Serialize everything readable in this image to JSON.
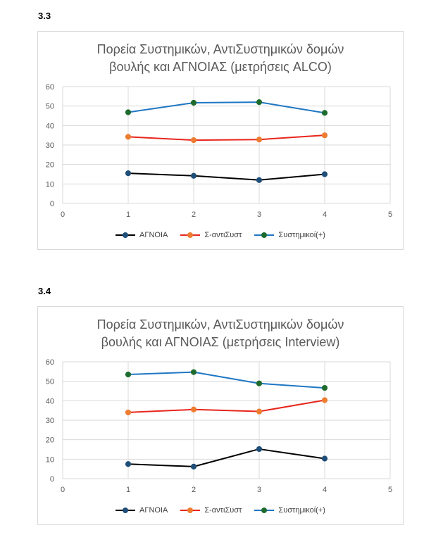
{
  "sections": [
    {
      "label": "3.3"
    },
    {
      "label": "3.4"
    }
  ],
  "chart_data": [
    {
      "type": "line",
      "title": "Πορεία Συστημικών, ΑντιΣυστημικών δομών\nβουλής και ΑΓΝΟΙΑΣ (μετρήσεις ALCO)",
      "xlim": [
        0,
        5
      ],
      "ylim": [
        0,
        60
      ],
      "xticks": [
        "0",
        "1",
        "2",
        "3",
        "4",
        "5"
      ],
      "yticks": [
        "0",
        "10",
        "20",
        "30",
        "40",
        "50",
        "60"
      ],
      "grid": true,
      "legend_position": "bottom",
      "x": [
        1,
        2,
        3,
        4
      ],
      "series": [
        {
          "name": "ΑΓΝΟΙΑ",
          "values": [
            15.5,
            14.2,
            12,
            15
          ],
          "line_color": "#000000",
          "marker_color": "#1f4e79"
        },
        {
          "name": "Σ-αντιΣυστ",
          "values": [
            34.2,
            32.5,
            32.8,
            35
          ],
          "line_color": "#e8261c",
          "marker_color": "#ed7d31"
        },
        {
          "name": "Συστημικοί(+)",
          "values": [
            46.8,
            51.7,
            52,
            46.5
          ],
          "line_color": "#1f77c4",
          "marker_color": "#1e6b2e"
        }
      ]
    },
    {
      "type": "line",
      "title": "Πορεία Συστημικών, ΑντιΣυστημικών δομών\nβουλής και ΑΓΝΟΙΑΣ (μετρήσεις Interview)",
      "xlim": [
        0,
        5
      ],
      "ylim": [
        0,
        60
      ],
      "xticks": [
        "0",
        "1",
        "2",
        "3",
        "4",
        "5"
      ],
      "yticks": [
        "0",
        "10",
        "20",
        "30",
        "40",
        "50",
        "60"
      ],
      "grid": true,
      "legend_position": "bottom",
      "x": [
        1,
        2,
        3,
        4
      ],
      "series": [
        {
          "name": "ΑΓΝΟΙΑ",
          "values": [
            7.5,
            6.2,
            15.2,
            10.3
          ],
          "line_color": "#000000",
          "marker_color": "#1f4e79"
        },
        {
          "name": "Σ-αντιΣυστ",
          "values": [
            34,
            35.5,
            34.5,
            40.3
          ],
          "line_color": "#e8261c",
          "marker_color": "#ed7d31"
        },
        {
          "name": "Συστημικοί(+)",
          "values": [
            53.5,
            54.7,
            48.9,
            46.6
          ],
          "line_color": "#1f77c4",
          "marker_color": "#1e6b2e"
        }
      ]
    }
  ]
}
